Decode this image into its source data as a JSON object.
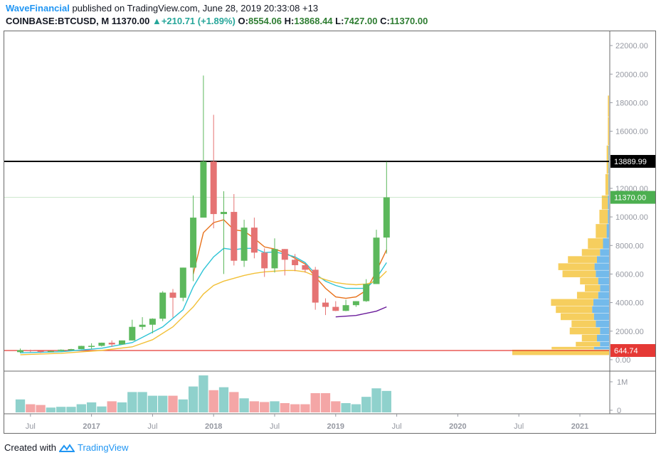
{
  "header": {
    "author": "WaveFinancial",
    "published_text": "published on TradingView.com, June 28, 2019 20:33:08 +13",
    "symbol": "COINBASE:BTCUSD, M",
    "last": "11370.00",
    "change": "+210.71 (+1.89%)",
    "open_label": "O:",
    "open": "8554.06",
    "high_label": "H:",
    "high": "13868.44",
    "low_label": "L:",
    "low": "7427.00",
    "close_label": "C:",
    "close": "11370.00"
  },
  "footer": {
    "created_with": "Created with",
    "brand": "TradingView"
  },
  "colors": {
    "up": "#5cb85c",
    "down": "#e57373",
    "vol_up": "#8fd1cc",
    "vol_down": "#f4a6a6",
    "ema_fast": "#e8711a",
    "ema_mid": "#2ec4d6",
    "ema_slow": "#f2c037",
    "ema_purple": "#6a1b9a",
    "resistance": "#000000",
    "support": "#e53935",
    "profile_up": "#f5c542",
    "profile_down": "#5aaee8"
  },
  "chart_data": {
    "type": "candlestick",
    "price_axis_ticks": [
      "22000.00",
      "20000.00",
      "18000.00",
      "16000.00",
      "14000.00",
      "12000.00",
      "10000.00",
      "8000.00",
      "6000.00",
      "4000.00",
      "2000.00",
      "0.00"
    ],
    "volume_axis_ticks": [
      "1M",
      "0"
    ],
    "time_axis_labels": [
      "Jul",
      "2017",
      "Jul",
      "2018",
      "Jul",
      "2019",
      "Jul",
      "2020",
      "Jul",
      "2021"
    ],
    "ylim": [
      -800,
      23000
    ],
    "horizontal_lines": [
      {
        "name": "resistance",
        "value": 13889.99,
        "label": "13889.99"
      },
      {
        "name": "support",
        "value": 644.74,
        "label": "644.74"
      }
    ],
    "last_price_label": "11370.00",
    "last_price": 11370,
    "candles": [
      {
        "date": "2016-06",
        "o": 530,
        "h": 780,
        "l": 460,
        "c": 670
      },
      {
        "date": "2016-07",
        "o": 670,
        "h": 705,
        "l": 530,
        "c": 625
      },
      {
        "date": "2016-08",
        "o": 625,
        "h": 620,
        "l": 470,
        "c": 575
      },
      {
        "date": "2016-09",
        "o": 575,
        "h": 630,
        "l": 560,
        "c": 609
      },
      {
        "date": "2016-10",
        "o": 609,
        "h": 720,
        "l": 600,
        "c": 700
      },
      {
        "date": "2016-11",
        "o": 700,
        "h": 760,
        "l": 680,
        "c": 742
      },
      {
        "date": "2016-12",
        "o": 742,
        "h": 975,
        "l": 735,
        "c": 965
      },
      {
        "date": "2017-01",
        "o": 965,
        "h": 1150,
        "l": 750,
        "c": 970
      },
      {
        "date": "2017-02",
        "o": 970,
        "h": 1200,
        "l": 920,
        "c": 1190
      },
      {
        "date": "2017-03",
        "o": 1190,
        "h": 1350,
        "l": 890,
        "c": 1070
      },
      {
        "date": "2017-04",
        "o": 1070,
        "h": 1350,
        "l": 1060,
        "c": 1350
      },
      {
        "date": "2017-05",
        "o": 1350,
        "h": 2800,
        "l": 1340,
        "c": 2300
      },
      {
        "date": "2017-06",
        "o": 2300,
        "h": 2980,
        "l": 2100,
        "c": 2450
      },
      {
        "date": "2017-07",
        "o": 2450,
        "h": 2900,
        "l": 1850,
        "c": 2870
      },
      {
        "date": "2017-08",
        "o": 2870,
        "h": 4800,
        "l": 2700,
        "c": 4700
      },
      {
        "date": "2017-09",
        "o": 4700,
        "h": 4950,
        "l": 2950,
        "c": 4340
      },
      {
        "date": "2017-10",
        "o": 4340,
        "h": 6450,
        "l": 4100,
        "c": 6450
      },
      {
        "date": "2017-11",
        "o": 6450,
        "h": 11500,
        "l": 5500,
        "c": 9950
      },
      {
        "date": "2017-12",
        "o": 9950,
        "h": 19900,
        "l": 10100,
        "c": 13880
      },
      {
        "date": "2018-01",
        "o": 13880,
        "h": 17150,
        "l": 9200,
        "c": 10200
      },
      {
        "date": "2018-02",
        "o": 10200,
        "h": 11800,
        "l": 6000,
        "c": 10350
      },
      {
        "date": "2018-03",
        "o": 10350,
        "h": 11600,
        "l": 6600,
        "c": 6930
      },
      {
        "date": "2018-04",
        "o": 6930,
        "h": 9800,
        "l": 6500,
        "c": 9250
      },
      {
        "date": "2018-05",
        "o": 9250,
        "h": 9950,
        "l": 7100,
        "c": 7500
      },
      {
        "date": "2018-06",
        "o": 7500,
        "h": 7800,
        "l": 5800,
        "c": 6400
      },
      {
        "date": "2018-07",
        "o": 6400,
        "h": 8500,
        "l": 6100,
        "c": 7750
      },
      {
        "date": "2018-08",
        "o": 7750,
        "h": 7750,
        "l": 5900,
        "c": 7000
      },
      {
        "date": "2018-09",
        "o": 7000,
        "h": 7400,
        "l": 6200,
        "c": 6620
      },
      {
        "date": "2018-10",
        "o": 6620,
        "h": 6750,
        "l": 6100,
        "c": 6300
      },
      {
        "date": "2018-11",
        "o": 6300,
        "h": 6500,
        "l": 3500,
        "c": 4000
      },
      {
        "date": "2018-12",
        "o": 4000,
        "h": 4300,
        "l": 3130,
        "c": 3700
      },
      {
        "date": "2019-01",
        "o": 3700,
        "h": 4100,
        "l": 3400,
        "c": 3420
      },
      {
        "date": "2019-02",
        "o": 3420,
        "h": 4200,
        "l": 3400,
        "c": 3820
      },
      {
        "date": "2019-03",
        "o": 3820,
        "h": 4100,
        "l": 3700,
        "c": 4100
      },
      {
        "date": "2019-04",
        "o": 4100,
        "h": 5640,
        "l": 4050,
        "c": 5300
      },
      {
        "date": "2019-05",
        "o": 5300,
        "h": 9100,
        "l": 5300,
        "c": 8550
      },
      {
        "date": "2019-06",
        "o": 8554.06,
        "h": 13868.44,
        "l": 7427,
        "c": 11370
      }
    ],
    "volumes_relative": [
      0.35,
      0.22,
      0.2,
      0.13,
      0.15,
      0.15,
      0.22,
      0.27,
      0.16,
      0.3,
      0.27,
      0.55,
      0.55,
      0.45,
      0.45,
      0.45,
      0.35,
      0.7,
      1.0,
      0.6,
      0.68,
      0.55,
      0.38,
      0.3,
      0.28,
      0.3,
      0.25,
      0.22,
      0.22,
      0.52,
      0.52,
      0.3,
      0.25,
      0.22,
      0.42,
      0.65,
      0.58
    ],
    "ema_series": [
      {
        "name": "ema-orange",
        "color": "#e8711a",
        "values": [
          [
            17,
            6000
          ],
          [
            18,
            8900
          ],
          [
            19,
            9600
          ],
          [
            20,
            9800
          ],
          [
            21,
            9100
          ],
          [
            22,
            9000
          ],
          [
            23,
            8500
          ],
          [
            24,
            7900
          ],
          [
            25,
            7750
          ],
          [
            26,
            7500
          ],
          [
            27,
            7100
          ],
          [
            28,
            6700
          ],
          [
            29,
            5800
          ],
          [
            30,
            5000
          ],
          [
            31,
            4400
          ],
          [
            32,
            4300
          ],
          [
            33,
            4400
          ],
          [
            34,
            4850
          ],
          [
            35,
            6200
          ],
          [
            36,
            7700
          ]
        ]
      },
      {
        "name": "ema-cyan",
        "color": "#2ec4d6",
        "values": [
          [
            0,
            480
          ],
          [
            4,
            560
          ],
          [
            8,
            800
          ],
          [
            11,
            1200
          ],
          [
            14,
            2300
          ],
          [
            16,
            3500
          ],
          [
            17,
            5100
          ],
          [
            18,
            6300
          ],
          [
            19,
            7200
          ],
          [
            20,
            7800
          ],
          [
            21,
            7700
          ],
          [
            22,
            7800
          ],
          [
            23,
            7800
          ],
          [
            24,
            7500
          ],
          [
            25,
            7550
          ],
          [
            26,
            7400
          ],
          [
            27,
            7200
          ],
          [
            28,
            6800
          ],
          [
            29,
            6000
          ],
          [
            30,
            5500
          ],
          [
            31,
            5200
          ],
          [
            32,
            5000
          ],
          [
            33,
            5000
          ],
          [
            34,
            5000
          ],
          [
            35,
            5700
          ],
          [
            36,
            6800
          ]
        ]
      },
      {
        "name": "ema-yellow",
        "color": "#f2c037",
        "values": [
          [
            0,
            350
          ],
          [
            4,
            450
          ],
          [
            8,
            650
          ],
          [
            11,
            900
          ],
          [
            13,
            1400
          ],
          [
            15,
            2300
          ],
          [
            17,
            3700
          ],
          [
            18,
            4600
          ],
          [
            19,
            5200
          ],
          [
            20,
            5500
          ],
          [
            21,
            5700
          ],
          [
            22,
            5900
          ],
          [
            23,
            6050
          ],
          [
            24,
            6150
          ],
          [
            25,
            6200
          ],
          [
            26,
            6250
          ],
          [
            27,
            6250
          ],
          [
            28,
            6150
          ],
          [
            29,
            5850
          ],
          [
            30,
            5600
          ],
          [
            31,
            5400
          ],
          [
            32,
            5300
          ],
          [
            33,
            5250
          ],
          [
            34,
            5300
          ],
          [
            35,
            5500
          ],
          [
            36,
            6200
          ]
        ]
      },
      {
        "name": "ema-purple",
        "color": "#6a1b9a",
        "values": [
          [
            31,
            3000
          ],
          [
            32,
            3050
          ],
          [
            33,
            3100
          ],
          [
            34,
            3250
          ],
          [
            35,
            3400
          ],
          [
            36,
            3700
          ]
        ]
      }
    ],
    "volume_profile": [
      {
        "price": 600,
        "up": 160,
        "down": 0
      },
      {
        "price": 800,
        "up": 70,
        "down": 25
      },
      {
        "price": 1000,
        "up": 40,
        "down": 15
      },
      {
        "price": 1500,
        "up": 25,
        "down": 20
      },
      {
        "price": 2000,
        "up": 50,
        "down": 15
      },
      {
        "price": 2500,
        "up": 40,
        "down": 22
      },
      {
        "price": 3000,
        "up": 55,
        "down": 25
      },
      {
        "price": 3500,
        "up": 60,
        "down": 28
      },
      {
        "price": 4000,
        "up": 70,
        "down": 26
      },
      {
        "price": 4500,
        "up": 35,
        "down": 18
      },
      {
        "price": 5000,
        "up": 25,
        "down": 15
      },
      {
        "price": 5500,
        "up": 30,
        "down": 18
      },
      {
        "price": 6000,
        "up": 55,
        "down": 22
      },
      {
        "price": 6500,
        "up": 60,
        "down": 24
      },
      {
        "price": 7000,
        "up": 48,
        "down": 20
      },
      {
        "price": 7500,
        "up": 30,
        "down": 15
      },
      {
        "price": 8000,
        "up": 25,
        "down": 10
      },
      {
        "price": 9000,
        "up": 18,
        "down": 4
      },
      {
        "price": 10000,
        "up": 14,
        "down": 2
      },
      {
        "price": 11000,
        "up": 10,
        "down": 2
      },
      {
        "price": 12000,
        "up": 5,
        "down": 1
      },
      {
        "price": 14000,
        "up": 3,
        "down": 1
      },
      {
        "price": 16000,
        "up": 2,
        "down": 0
      },
      {
        "price": 18000,
        "up": 2,
        "down": 0
      }
    ]
  }
}
